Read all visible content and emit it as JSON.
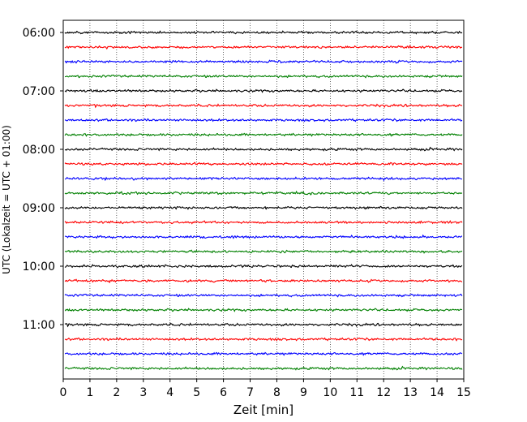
{
  "chart_data": {
    "type": "line",
    "title": "",
    "xlabel": "Zeit  [min]",
    "ylabel": "UTC (Lokalzeit = UTC + 01:00)",
    "xlim": [
      0,
      15
    ],
    "x_ticks": [
      0,
      1,
      2,
      3,
      4,
      5,
      6,
      7,
      8,
      9,
      10,
      11,
      12,
      13,
      14,
      15
    ],
    "y_ticks": [
      "06:00",
      "07:00",
      "08:00",
      "09:00",
      "10:00",
      "11:00"
    ],
    "grid": {
      "vertical": true,
      "style": "dotted"
    },
    "trace_colors": [
      "#000000",
      "#ff0000",
      "#0000ff",
      "#008000"
    ],
    "traces": [
      {
        "start": "06:00",
        "color": "#000000"
      },
      {
        "start": "06:15",
        "color": "#ff0000"
      },
      {
        "start": "06:30",
        "color": "#0000ff"
      },
      {
        "start": "06:45",
        "color": "#008000"
      },
      {
        "start": "07:00",
        "color": "#000000"
      },
      {
        "start": "07:15",
        "color": "#ff0000"
      },
      {
        "start": "07:30",
        "color": "#0000ff"
      },
      {
        "start": "07:45",
        "color": "#008000"
      },
      {
        "start": "08:00",
        "color": "#000000"
      },
      {
        "start": "08:15",
        "color": "#ff0000"
      },
      {
        "start": "08:30",
        "color": "#0000ff"
      },
      {
        "start": "08:45",
        "color": "#008000"
      },
      {
        "start": "09:00",
        "color": "#000000"
      },
      {
        "start": "09:15",
        "color": "#ff0000"
      },
      {
        "start": "09:30",
        "color": "#0000ff"
      },
      {
        "start": "09:45",
        "color": "#008000"
      },
      {
        "start": "10:00",
        "color": "#000000"
      },
      {
        "start": "10:15",
        "color": "#ff0000"
      },
      {
        "start": "10:30",
        "color": "#0000ff"
      },
      {
        "start": "10:45",
        "color": "#008000"
      },
      {
        "start": "11:00",
        "color": "#000000"
      },
      {
        "start": "11:15",
        "color": "#ff0000"
      },
      {
        "start": "11:30",
        "color": "#0000ff"
      },
      {
        "start": "11:45",
        "color": "#008000"
      }
    ]
  }
}
